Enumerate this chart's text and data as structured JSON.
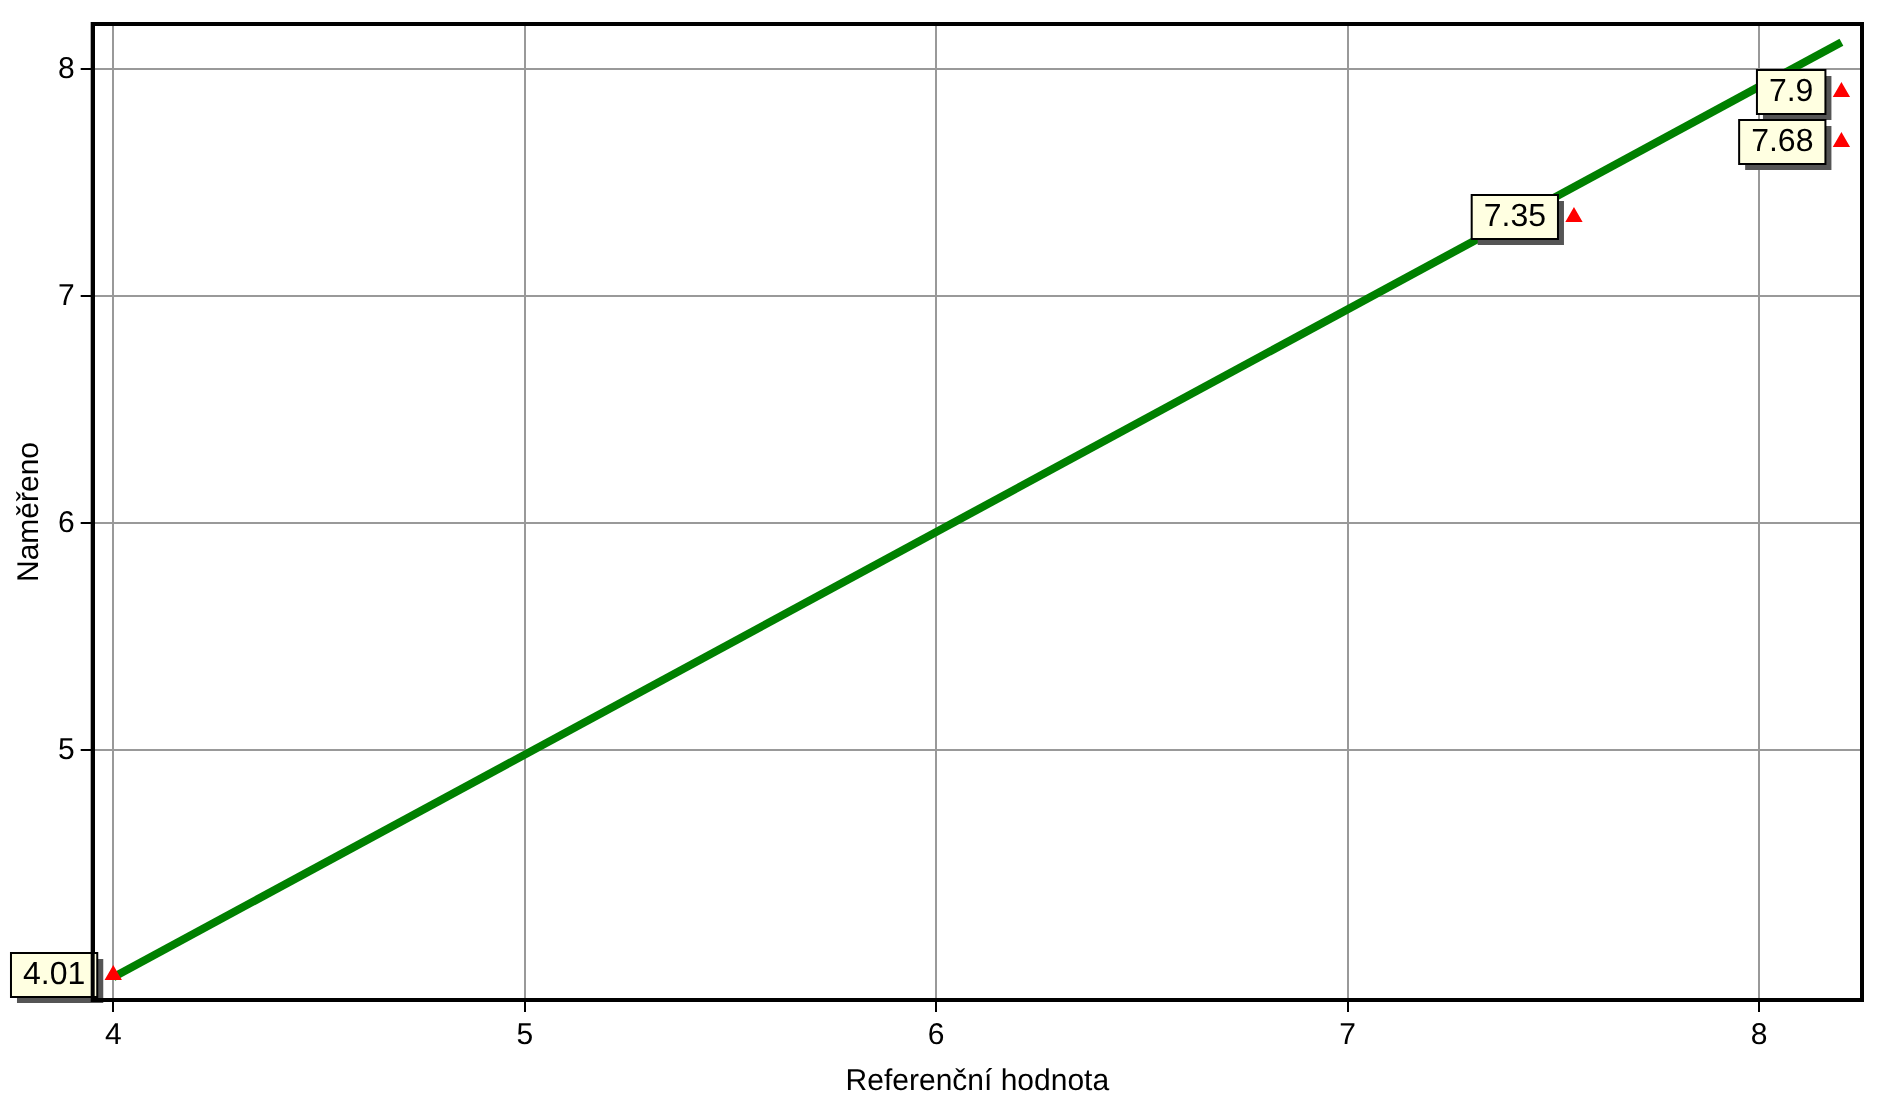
{
  "chart_data": {
    "type": "scatter",
    "xlabel": "Referenční hodnota",
    "ylabel": "Naměřeno",
    "xlim": [
      3.95,
      8.25
    ],
    "ylim": [
      3.9,
      8.2
    ],
    "xticks": [
      4,
      5,
      6,
      7,
      8
    ],
    "yticks": [
      5,
      6,
      7,
      8
    ],
    "series": [
      {
        "color": "#ff0000",
        "x": [
          4,
          7.55,
          8.2,
          8.2
        ],
        "values": [
          4.01,
          7.35,
          7.9,
          7.68
        ],
        "value_labels": [
          "4.01",
          "7.35",
          "7.9",
          "7.68"
        ],
        "marker": "triangle"
      },
      {
        "type": "line",
        "color": "#008000",
        "x": [
          4,
          8.2
        ],
        "values": [
          4,
          8.12
        ]
      }
    ],
    "grid": true,
    "legend": false,
    "line_style": "solid"
  }
}
